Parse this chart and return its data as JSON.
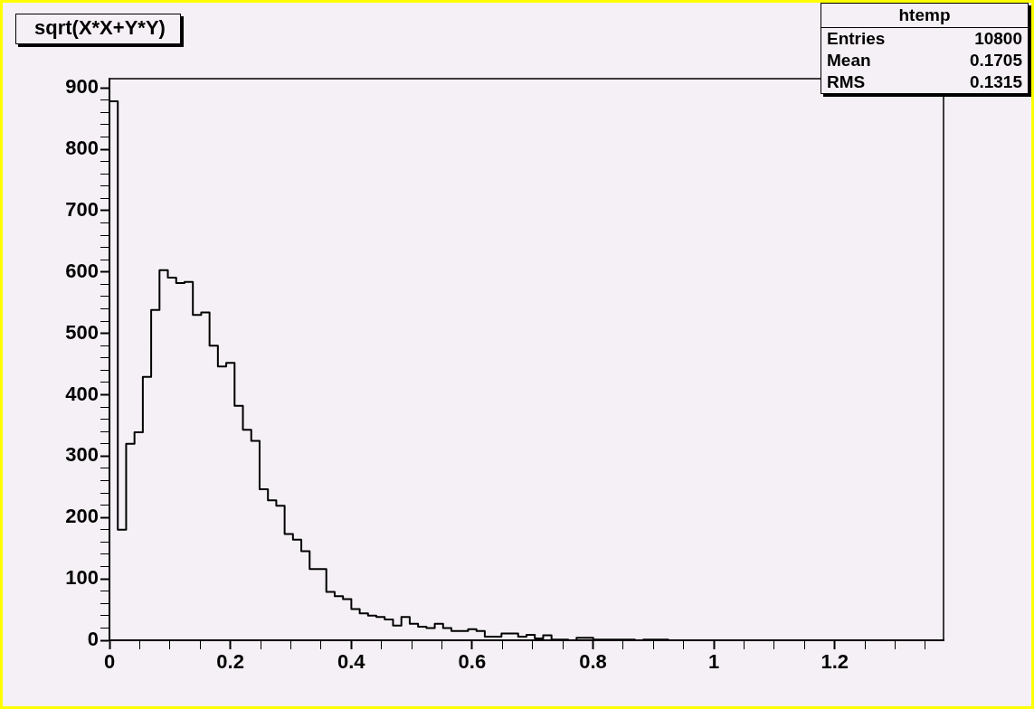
{
  "chart_data": {
    "type": "histogram",
    "title": "sqrt(X*X+Y*Y)",
    "annotations": [
      "htemp",
      "Entries 10800",
      "Mean 0.1705",
      "RMS 0.1315"
    ],
    "color": "#000000",
    "bins": [
      0,
      0.0138,
      0.0276,
      0.0414,
      0.0552,
      0.069,
      0.0828,
      0.0966,
      0.1104,
      0.1242,
      0.138,
      0.1518,
      0.1656,
      0.1794,
      0.1932,
      0.207,
      0.2208,
      0.2346,
      0.2484,
      0.2622,
      0.276,
      0.2898,
      0.3036,
      0.3174,
      0.3312,
      0.345,
      0.3588,
      0.3726,
      0.3864,
      0.4002,
      0.414,
      0.4278,
      0.4416,
      0.4554,
      0.4692,
      0.483,
      0.4968,
      0.5106,
      0.5244,
      0.5382,
      0.552,
      0.5658,
      0.5796,
      0.5934,
      0.6072,
      0.621,
      0.6348,
      0.6486,
      0.6624,
      0.6762,
      0.69,
      0.7038,
      0.7176,
      0.7314,
      0.7452,
      0.759,
      0.7728,
      0.7866,
      0.8004,
      0.8142,
      0.828,
      0.8418,
      0.8556,
      0.8694,
      0.8832,
      0.897,
      0.9108,
      0.9246,
      0.9384,
      0.9522,
      0.966,
      0.9798,
      0.9936,
      1.0074,
      1.0212,
      1.035,
      1.0488,
      1.0626,
      1.0764,
      1.0902,
      1.104,
      1.1178,
      1.1316,
      1.1454,
      1.1592,
      1.173,
      1.1868,
      1.2006,
      1.2144,
      1.2282,
      1.242,
      1.2558,
      1.2696,
      1.2834,
      1.2972,
      1.311,
      1.3248,
      1.3386,
      1.3524,
      1.3662,
      1.38
    ],
    "values": [
      878,
      180,
      320,
      339,
      429,
      538,
      603,
      591,
      582,
      584,
      530,
      534,
      480,
      446,
      452,
      382,
      343,
      325,
      246,
      228,
      219,
      173,
      164,
      145,
      116,
      116,
      79,
      72,
      67,
      51,
      44,
      40,
      38,
      34,
      24,
      38,
      27,
      22,
      20,
      27,
      20,
      15,
      15,
      18,
      15,
      6,
      6,
      11,
      11,
      6,
      9,
      3,
      8,
      1,
      1,
      0,
      4,
      4,
      1,
      1,
      1,
      1,
      1,
      0,
      1,
      1,
      1,
      0,
      0,
      0,
      0,
      0,
      0,
      0,
      0,
      0,
      0,
      0,
      0,
      0,
      0,
      0,
      0,
      0,
      0,
      0,
      0,
      0,
      0,
      0,
      0,
      0,
      0,
      0,
      0,
      0,
      0,
      0,
      0,
      0
    ],
    "xlim": [
      0,
      1.38
    ],
    "xticks": [
      0,
      {
        "value": 0.05,
        "label": null
      },
      {
        "value": 0.1,
        "label": null
      },
      {
        "value": 0.15,
        "label": null
      },
      0.2,
      {
        "value": 0.25,
        "label": null
      },
      {
        "value": 0.3,
        "label": null
      },
      {
        "value": 0.35,
        "label": null
      },
      0.4,
      {
        "value": 0.45,
        "label": null
      },
      {
        "value": 0.5,
        "label": null
      },
      {
        "value": 0.55,
        "label": null
      },
      0.6,
      {
        "value": 0.65,
        "label": null
      },
      {
        "value": 0.7,
        "label": null
      },
      {
        "value": 0.75,
        "label": null
      },
      0.8,
      {
        "value": 0.85,
        "label": null
      },
      {
        "value": 0.9,
        "label": null
      },
      {
        "value": 0.95,
        "label": null
      },
      1,
      {
        "value": 1.05,
        "label": null
      },
      {
        "value": 1.1,
        "label": null
      },
      {
        "value": 1.15,
        "label": null
      },
      1.2,
      {
        "value": 1.25,
        "label": null
      },
      {
        "value": 1.3,
        "label": null
      },
      {
        "value": 1.35,
        "label": null
      }
    ],
    "ylim": [
      0,
      915
    ],
    "yticks": [
      0,
      {
        "value": 20,
        "label": null
      },
      {
        "value": 40,
        "label": null
      },
      {
        "value": 60,
        "label": null
      },
      {
        "value": 80,
        "label": null
      },
      100,
      {
        "value": 120,
        "label": null
      },
      {
        "value": 140,
        "label": null
      },
      {
        "value": 160,
        "label": null
      },
      {
        "value": 180,
        "label": null
      },
      200,
      {
        "value": 220,
        "label": null
      },
      {
        "value": 240,
        "label": null
      },
      {
        "value": 260,
        "label": null
      },
      {
        "value": 280,
        "label": null
      },
      300,
      {
        "value": 320,
        "label": null
      },
      {
        "value": 340,
        "label": null
      },
      {
        "value": 360,
        "label": null
      },
      {
        "value": 380,
        "label": null
      },
      400,
      {
        "value": 420,
        "label": null
      },
      {
        "value": 440,
        "label": null
      },
      {
        "value": 460,
        "label": null
      },
      {
        "value": 480,
        "label": null
      },
      500,
      {
        "value": 520,
        "label": null
      },
      {
        "value": 540,
        "label": null
      },
      {
        "value": 560,
        "label": null
      },
      {
        "value": 580,
        "label": null
      },
      600,
      {
        "value": 620,
        "label": null
      },
      {
        "value": 640,
        "label": null
      },
      {
        "value": 660,
        "label": null
      },
      {
        "value": 680,
        "label": null
      },
      700,
      {
        "value": 720,
        "label": null
      },
      {
        "value": 740,
        "label": null
      },
      {
        "value": 760,
        "label": null
      },
      {
        "value": 780,
        "label": null
      },
      800,
      {
        "value": 820,
        "label": null
      },
      {
        "value": 840,
        "label": null
      },
      {
        "value": 860,
        "label": null
      },
      {
        "value": 880,
        "label": null
      },
      900
    ]
  }
}
